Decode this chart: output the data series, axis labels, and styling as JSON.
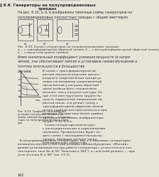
{
  "title_line1": "§ 8.6. Генераторы на полупроводниковых",
  "title_line2": "триодах",
  "background_color": "#e8e4d8",
  "text_color": "#2a2a2a",
  "page_number": "162"
}
